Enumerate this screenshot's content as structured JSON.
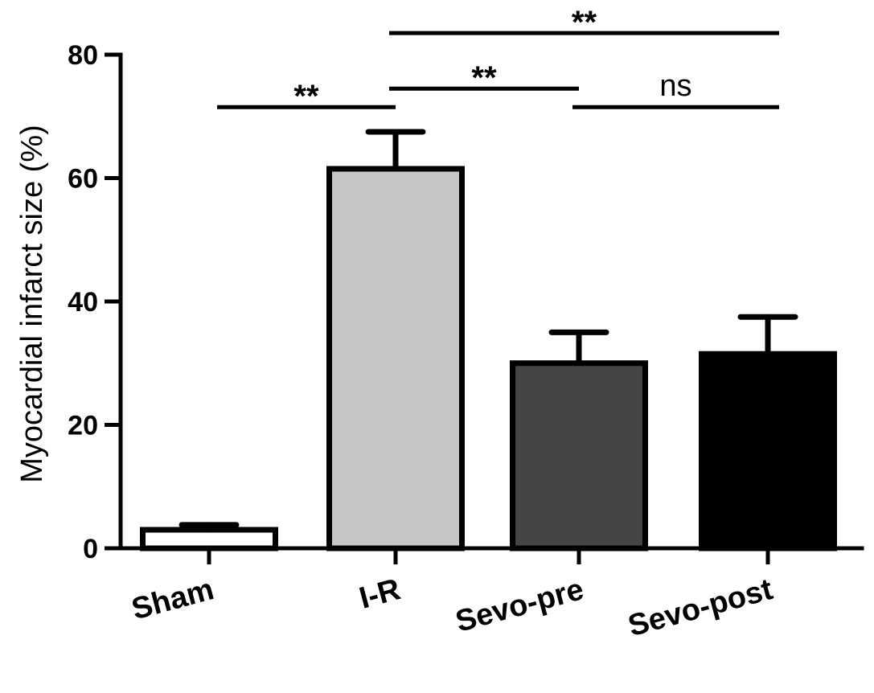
{
  "chart_data": {
    "type": "bar",
    "title": "",
    "xlabel": "",
    "ylabel": "Myocardial infarct size (%)",
    "ylim": [
      0,
      80
    ],
    "yticks": [
      0,
      20,
      40,
      60,
      80
    ],
    "yticks_labels": [
      "0",
      "20",
      "40",
      "60",
      "80"
    ],
    "grid": false,
    "categories": [
      "Sham",
      "I-R",
      "Sevo-pre",
      "Sevo-post"
    ],
    "values": [
      3,
      61.5,
      30,
      31.5
    ],
    "errors": [
      0.8,
      6,
      5,
      6
    ],
    "bar_fills": [
      "#ffffff",
      "#c6c6c6",
      "#444444",
      "#000000"
    ],
    "significance": [
      {
        "from": 0,
        "to": 1,
        "label": "**",
        "y": 71.5
      },
      {
        "from": 1,
        "to": 2,
        "label": "**",
        "y": 74.5
      },
      {
        "from": 2,
        "to": 3,
        "label": "ns",
        "y": 71.5
      },
      {
        "from": 1,
        "to": 3,
        "label": "**",
        "y": 83.5
      }
    ]
  }
}
